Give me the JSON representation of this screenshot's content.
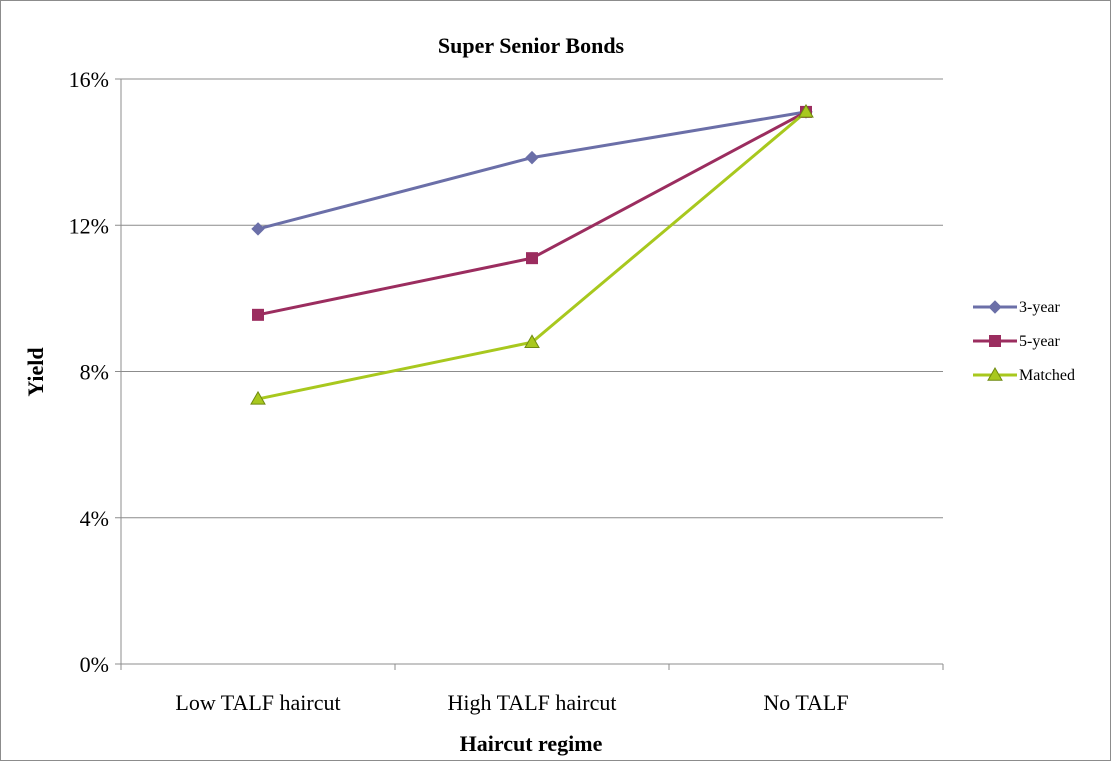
{
  "chart_data": {
    "type": "line",
    "title": "Super Senior Bonds",
    "xlabel": "Haircut regime",
    "ylabel": "Yield",
    "categories": [
      "Low TALF haircut",
      "High TALF haircut",
      "No TALF"
    ],
    "ylim": [
      0,
      16
    ],
    "yticks": [
      0,
      4,
      8,
      12,
      16
    ],
    "ytick_labels": [
      "0%",
      "4%",
      "8%",
      "12%",
      "16%"
    ],
    "grid": true,
    "legend_position": "right",
    "series": [
      {
        "name": "3-year",
        "values": [
          11.9,
          13.85,
          15.1
        ],
        "color": "#6b6fa8",
        "marker": "diamond"
      },
      {
        "name": "5-year",
        "values": [
          9.55,
          11.1,
          15.1
        ],
        "color": "#9b2d5f",
        "marker": "square"
      },
      {
        "name": "Matched",
        "values": [
          7.25,
          8.8,
          15.1
        ],
        "color": "#a8c81e",
        "marker": "triangle"
      }
    ]
  }
}
